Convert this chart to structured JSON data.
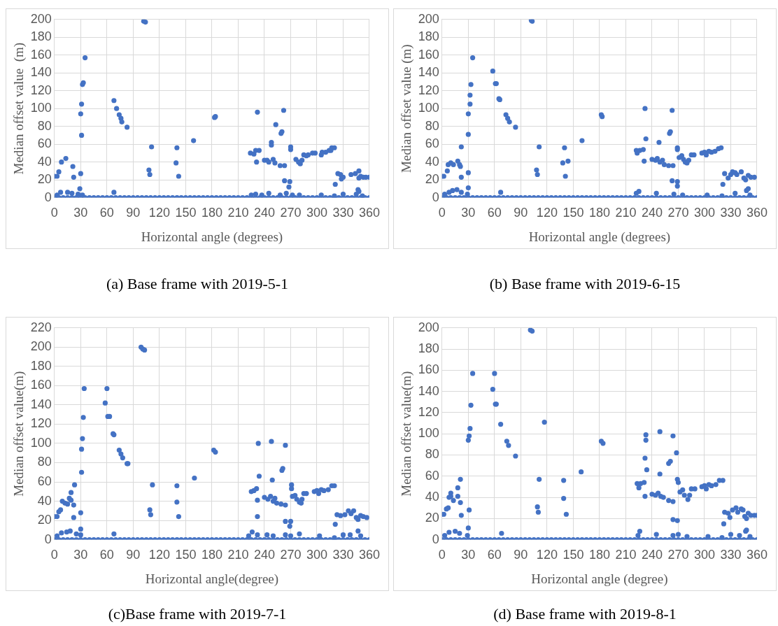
{
  "chart_data": [
    {
      "type": "scatter",
      "title": "(a)  Base frame with 2019-5-1",
      "xlabel": "Horizontal angle (degrees)",
      "ylabel": "Median offset value  (m)",
      "xlim": [
        0,
        360
      ],
      "xticks": [
        0,
        30,
        60,
        90,
        120,
        150,
        180,
        210,
        240,
        270,
        300,
        330,
        360
      ],
      "ylim": [
        0,
        200
      ],
      "yticks": [
        0,
        20,
        40,
        60,
        80,
        100,
        120,
        140,
        160,
        180,
        200
      ],
      "grid": true,
      "marker": "circle",
      "series": [
        {
          "color": "#4472c4",
          "x": [
            0,
            3,
            5,
            8,
            13,
            21,
            22,
            30,
            30,
            31,
            31,
            32,
            33,
            35,
            29,
            3,
            7,
            15,
            20,
            27,
            32,
            68,
            68,
            71,
            74,
            76,
            77,
            83,
            102,
            104,
            108,
            109,
            111,
            140,
            139,
            142,
            159,
            183,
            184,
            224,
            228,
            230,
            234,
            231,
            232,
            240,
            243,
            245,
            248,
            248,
            250,
            252,
            253,
            258,
            259,
            260,
            262,
            263,
            263,
            270,
            270,
            269,
            268,
            276,
            279,
            281,
            283,
            285,
            288,
            290,
            295,
            298,
            305,
            306,
            310,
            314,
            316,
            317,
            320,
            321,
            324,
            327,
            328,
            330,
            339,
            344,
            348,
            348,
            350,
            353,
            356,
            360,
            225,
            230,
            237,
            245,
            258,
            265,
            272,
            280,
            305,
            320,
            330,
            345,
            347,
            348,
            352
          ],
          "values": [
            24,
            24,
            29,
            40,
            44,
            35,
            23,
            27,
            94,
            105,
            70,
            127,
            129,
            157,
            10,
            3,
            6,
            6,
            5,
            4,
            3,
            6,
            109,
            100,
            93,
            89,
            85,
            79,
            198,
            197,
            31,
            26,
            57,
            56,
            39,
            24,
            64,
            90,
            91,
            50,
            49,
            53,
            53,
            40,
            96,
            42,
            42,
            40,
            62,
            59,
            43,
            39,
            82,
            36,
            72,
            74,
            98,
            36,
            19,
            57,
            54,
            18,
            12,
            43,
            40,
            38,
            42,
            48,
            47,
            48,
            50,
            50,
            48,
            51,
            51,
            53,
            53,
            56,
            56,
            15,
            27,
            26,
            21,
            23,
            26,
            27,
            30,
            22,
            24,
            23,
            23,
            23,
            3,
            4,
            3,
            5,
            3,
            5,
            3,
            3,
            3,
            2,
            4,
            4,
            9,
            7,
            2
          ]
        },
        {
          "color": "#4472c4",
          "x": [
            0,
            5,
            10,
            15,
            20,
            25,
            30,
            35,
            40,
            45,
            50,
            55,
            60,
            65,
            70,
            75,
            80,
            85,
            90,
            95,
            100,
            105,
            110,
            115,
            120,
            125,
            130,
            135,
            140,
            145,
            150,
            155,
            160,
            165,
            170,
            175,
            180,
            185,
            190,
            195,
            200,
            205,
            210,
            215,
            220,
            225,
            230,
            235,
            240,
            245,
            250,
            255,
            260,
            265,
            270,
            275,
            280,
            285,
            290,
            295,
            300,
            305,
            310,
            315,
            320,
            325,
            330,
            335,
            340,
            345,
            350,
            355,
            360
          ],
          "values": [
            0,
            0,
            0,
            0,
            0,
            0,
            0,
            0,
            0,
            0,
            0,
            0,
            0,
            0,
            0,
            0,
            0,
            0,
            0,
            0,
            0,
            0,
            0,
            0,
            0,
            0,
            0,
            0,
            0,
            0,
            0,
            0,
            0,
            0,
            0,
            0,
            0,
            0,
            0,
            0,
            0,
            0,
            0,
            0,
            0,
            0,
            0,
            0,
            0,
            0,
            0,
            0,
            0,
            0,
            0,
            0,
            0,
            0,
            0,
            0,
            0,
            0,
            0,
            0,
            0,
            0,
            0,
            0,
            0,
            0,
            0,
            0,
            0
          ]
        }
      ]
    },
    {
      "type": "scatter",
      "title": "(b) Base frame with 2019-6-15",
      "xlabel": "Horizontal angle (degrees)",
      "ylabel": "Median offset value (m)",
      "xlim": [
        0,
        360
      ],
      "xticks": [
        0,
        30,
        60,
        90,
        120,
        150,
        180,
        210,
        240,
        270,
        300,
        330,
        360
      ],
      "ylim": [
        0,
        200
      ],
      "yticks": [
        0,
        20,
        40,
        60,
        80,
        100,
        120,
        140,
        160,
        180,
        200
      ],
      "grid": true,
      "marker": "circle",
      "series": [
        {
          "color": "#4472c4",
          "x": [
            0,
            2,
            6,
            7,
            10,
            13,
            18,
            20,
            21,
            22,
            22,
            30,
            30,
            30,
            30,
            32,
            32,
            33,
            35,
            58,
            61,
            62,
            65,
            66,
            67,
            73,
            75,
            77,
            84,
            102,
            103,
            108,
            109,
            111,
            138,
            140,
            141,
            144,
            160,
            182,
            183,
            222,
            223,
            226,
            230,
            232,
            231,
            233,
            240,
            244,
            246,
            248,
            249,
            252,
            254,
            259,
            260,
            261,
            263,
            263,
            264,
            269,
            269,
            269,
            269,
            271,
            274,
            276,
            278,
            280,
            282,
            285,
            288,
            297,
            300,
            302,
            305,
            308,
            312,
            316,
            319,
            321,
            323,
            327,
            330,
            332,
            335,
            337,
            342,
            345,
            347,
            350,
            353,
            357,
            3,
            8,
            12,
            17,
            22,
            29,
            222,
            225,
            245,
            265,
            275,
            303,
            320,
            335,
            348,
            350,
            352
          ],
          "values": [
            24,
            24,
            30,
            37,
            39,
            37,
            41,
            37,
            35,
            57,
            23,
            28,
            11,
            94,
            71,
            105,
            115,
            127,
            157,
            142,
            128,
            128,
            111,
            110,
            6,
            93,
            89,
            85,
            79,
            199,
            198,
            31,
            26,
            57,
            39,
            56,
            24,
            41,
            64,
            93,
            91,
            53,
            50,
            53,
            54,
            100,
            41,
            66,
            43,
            42,
            44,
            62,
            40,
            42,
            37,
            36,
            72,
            74,
            98,
            19,
            36,
            18,
            13,
            56,
            54,
            45,
            47,
            43,
            40,
            39,
            42,
            48,
            48,
            50,
            51,
            48,
            52,
            51,
            52,
            55,
            56,
            15,
            27,
            22,
            26,
            29,
            28,
            26,
            29,
            22,
            20,
            25,
            23,
            23,
            4,
            6,
            8,
            9,
            6,
            4,
            5,
            7,
            5,
            4,
            3,
            3,
            2,
            5,
            8,
            10,
            3
          ]
        },
        {
          "color": "#4472c4",
          "x": [
            0,
            5,
            10,
            15,
            20,
            25,
            30,
            35,
            40,
            45,
            50,
            55,
            60,
            65,
            70,
            75,
            80,
            85,
            90,
            95,
            100,
            105,
            110,
            115,
            120,
            125,
            130,
            135,
            140,
            145,
            150,
            155,
            160,
            165,
            170,
            175,
            180,
            185,
            190,
            195,
            200,
            205,
            210,
            215,
            220,
            225,
            230,
            235,
            240,
            245,
            250,
            255,
            260,
            265,
            270,
            275,
            280,
            285,
            290,
            295,
            300,
            305,
            310,
            315,
            320,
            325,
            330,
            335,
            340,
            345,
            350,
            355,
            360
          ],
          "values": [
            0,
            0,
            0,
            0,
            0,
            0,
            0,
            0,
            0,
            0,
            0,
            0,
            0,
            0,
            0,
            0,
            0,
            0,
            0,
            0,
            0,
            0,
            0,
            0,
            0,
            0,
            0,
            0,
            0,
            0,
            0,
            0,
            0,
            0,
            0,
            0,
            0,
            0,
            0,
            0,
            0,
            0,
            0,
            0,
            0,
            0,
            0,
            0,
            0,
            0,
            0,
            0,
            0,
            0,
            0,
            0,
            0,
            0,
            0,
            0,
            0,
            0,
            0,
            0,
            0,
            0,
            0,
            0,
            0,
            0,
            0,
            0,
            0
          ]
        }
      ]
    },
    {
      "type": "scatter",
      "title": "(c)Base frame with 2019-7-1",
      "xlabel": "Horizontal angle(degree)",
      "ylabel": "Median offset value(m)",
      "xlim": [
        0,
        360
      ],
      "xticks": [
        0,
        30,
        60,
        90,
        120,
        150,
        180,
        210,
        240,
        270,
        300,
        330,
        360
      ],
      "ylim": [
        0,
        220
      ],
      "yticks": [
        0,
        20,
        40,
        60,
        80,
        100,
        120,
        140,
        160,
        180,
        200,
        220
      ],
      "grid": true,
      "marker": "circle",
      "series": [
        {
          "color": "#4472c4",
          "x": [
            0,
            3,
            5,
            7,
            9,
            12,
            15,
            17,
            19,
            19,
            22,
            22,
            23,
            30,
            30,
            31,
            31,
            32,
            33,
            34,
            58,
            60,
            61,
            63,
            67,
            68,
            68,
            74,
            76,
            78,
            83,
            84,
            99,
            101,
            103,
            109,
            110,
            112,
            140,
            140,
            142,
            160,
            182,
            184,
            225,
            228,
            231,
            232,
            232,
            233,
            234,
            240,
            244,
            247,
            248,
            249,
            250,
            252,
            254,
            259,
            260,
            261,
            264,
            264,
            264,
            269,
            270,
            271,
            271,
            272,
            275,
            277,
            280,
            282,
            283,
            285,
            288,
            297,
            300,
            302,
            305,
            308,
            313,
            317,
            320,
            321,
            323,
            327,
            332,
            336,
            339,
            342,
            345,
            347,
            350,
            353,
            357,
            3,
            8,
            14,
            18,
            25,
            30,
            222,
            226,
            232,
            243,
            250,
            264,
            270,
            280,
            303,
            320,
            330,
            338,
            347,
            350
          ],
          "values": [
            24,
            24,
            29,
            31,
            40,
            38,
            37,
            43,
            41,
            49,
            36,
            23,
            57,
            28,
            11,
            94,
            70,
            105,
            127,
            157,
            142,
            157,
            128,
            128,
            110,
            109,
            6,
            93,
            89,
            85,
            79,
            79,
            200,
            198,
            197,
            31,
            26,
            57,
            56,
            39,
            24,
            64,
            93,
            91,
            50,
            51,
            53,
            41,
            24,
            100,
            66,
            44,
            42,
            45,
            102,
            62,
            40,
            43,
            38,
            37,
            72,
            74,
            98,
            36,
            19,
            14,
            19,
            57,
            53,
            45,
            46,
            42,
            39,
            38,
            42,
            48,
            48,
            50,
            51,
            48,
            52,
            51,
            52,
            56,
            56,
            16,
            26,
            25,
            26,
            30,
            27,
            30,
            23,
            21,
            25,
            24,
            23,
            4,
            7,
            8,
            9,
            6,
            5,
            4,
            8,
            5,
            5,
            4,
            5,
            4,
            6,
            4,
            2,
            5,
            5,
            9,
            4
          ]
        },
        {
          "color": "#4472c4",
          "x": [
            0,
            5,
            10,
            15,
            20,
            25,
            30,
            35,
            40,
            45,
            50,
            55,
            60,
            65,
            70,
            75,
            80,
            85,
            90,
            95,
            100,
            105,
            110,
            115,
            120,
            125,
            130,
            135,
            140,
            145,
            150,
            155,
            160,
            165,
            170,
            175,
            180,
            185,
            190,
            195,
            200,
            205,
            210,
            215,
            220,
            225,
            230,
            235,
            240,
            245,
            250,
            255,
            260,
            265,
            270,
            275,
            280,
            285,
            290,
            295,
            300,
            305,
            310,
            315,
            320,
            325,
            330,
            335,
            340,
            345,
            350,
            355,
            360
          ],
          "values": [
            0,
            0,
            0,
            0,
            0,
            0,
            0,
            0,
            0,
            0,
            0,
            0,
            0,
            0,
            0,
            0,
            0,
            0,
            0,
            0,
            0,
            0,
            0,
            0,
            0,
            0,
            0,
            0,
            0,
            0,
            0,
            0,
            0,
            0,
            0,
            0,
            0,
            0,
            0,
            0,
            0,
            0,
            0,
            0,
            0,
            0,
            0,
            0,
            0,
            0,
            0,
            0,
            0,
            0,
            0,
            0,
            0,
            0,
            0,
            0,
            0,
            0,
            0,
            0,
            0,
            0,
            0,
            0,
            0,
            0,
            0,
            0,
            0
          ]
        }
      ]
    },
    {
      "type": "scatter",
      "title": "(d) Base frame with 2019-8-1",
      "xlabel": "Horizontal angle (degree)",
      "ylabel": "Median offset value(m)",
      "xlim": [
        0,
        360
      ],
      "xticks": [
        0,
        30,
        60,
        90,
        120,
        150,
        180,
        210,
        240,
        270,
        300,
        330,
        360
      ],
      "ylim": [
        0,
        200
      ],
      "yticks": [
        0,
        20,
        40,
        60,
        80,
        100,
        120,
        140,
        160,
        180,
        200
      ],
      "grid": true,
      "marker": "circle",
      "series": [
        {
          "color": "#4472c4",
          "x": [
            0,
            2,
            5,
            7,
            8,
            10,
            10,
            13,
            18,
            18,
            21,
            21,
            22,
            31,
            30,
            30,
            31,
            32,
            33,
            35,
            58,
            60,
            61,
            62,
            67,
            68,
            74,
            76,
            84,
            101,
            103,
            109,
            110,
            111,
            117,
            139,
            139,
            142,
            159,
            182,
            184,
            223,
            225,
            227,
            231,
            232,
            232,
            233,
            233,
            234,
            240,
            244,
            247,
            249,
            249,
            250,
            253,
            259,
            259,
            261,
            264,
            264,
            264,
            268,
            269,
            269,
            270,
            272,
            275,
            277,
            281,
            283,
            285,
            289,
            297,
            300,
            302,
            305,
            308,
            313,
            317,
            321,
            322,
            323,
            327,
            329,
            332,
            336,
            338,
            342,
            344,
            346,
            348,
            350,
            353,
            357,
            360,
            3,
            8,
            15,
            20,
            29,
            224,
            226,
            245,
            264,
            270,
            280,
            304,
            320,
            330,
            340,
            347,
            348,
            352
          ],
          "values": [
            24,
            24,
            29,
            30,
            40,
            44,
            41,
            37,
            49,
            41,
            57,
            35,
            23,
            28,
            11,
            94,
            98,
            105,
            127,
            157,
            142,
            157,
            128,
            128,
            109,
            6,
            93,
            89,
            79,
            198,
            197,
            31,
            26,
            57,
            111,
            56,
            39,
            24,
            64,
            93,
            91,
            53,
            49,
            53,
            54,
            41,
            77,
            99,
            94,
            66,
            43,
            42,
            44,
            102,
            62,
            41,
            40,
            37,
            72,
            74,
            98,
            36,
            19,
            82,
            57,
            18,
            54,
            45,
            47,
            42,
            38,
            42,
            48,
            48,
            50,
            51,
            48,
            52,
            51,
            52,
            56,
            56,
            15,
            26,
            25,
            21,
            28,
            30,
            26,
            29,
            28,
            22,
            20,
            25,
            23,
            23,
            23,
            4,
            7,
            8,
            6,
            4,
            4,
            8,
            5,
            4,
            5,
            3,
            3,
            2,
            5,
            4,
            8,
            9,
            3
          ]
        },
        {
          "color": "#4472c4",
          "x": [
            0,
            5,
            10,
            15,
            20,
            25,
            30,
            35,
            40,
            45,
            50,
            55,
            60,
            65,
            70,
            75,
            80,
            85,
            90,
            95,
            100,
            105,
            110,
            115,
            120,
            125,
            130,
            135,
            140,
            145,
            150,
            155,
            160,
            165,
            170,
            175,
            180,
            185,
            190,
            195,
            200,
            205,
            210,
            215,
            220,
            225,
            230,
            235,
            240,
            245,
            250,
            255,
            260,
            265,
            270,
            275,
            280,
            285,
            290,
            295,
            300,
            305,
            310,
            315,
            320,
            325,
            330,
            335,
            340,
            345,
            350,
            355,
            360
          ],
          "values": [
            0,
            0,
            0,
            0,
            0,
            0,
            0,
            0,
            0,
            0,
            0,
            0,
            0,
            0,
            0,
            0,
            0,
            0,
            0,
            0,
            0,
            0,
            0,
            0,
            0,
            0,
            0,
            0,
            0,
            0,
            0,
            0,
            0,
            0,
            0,
            0,
            0,
            0,
            0,
            0,
            0,
            0,
            0,
            0,
            0,
            0,
            0,
            0,
            0,
            0,
            0,
            0,
            0,
            0,
            0,
            0,
            0,
            0,
            0,
            0,
            0,
            0,
            0,
            0,
            0,
            0,
            0,
            0,
            0,
            0,
            0,
            0,
            0
          ]
        }
      ]
    }
  ]
}
